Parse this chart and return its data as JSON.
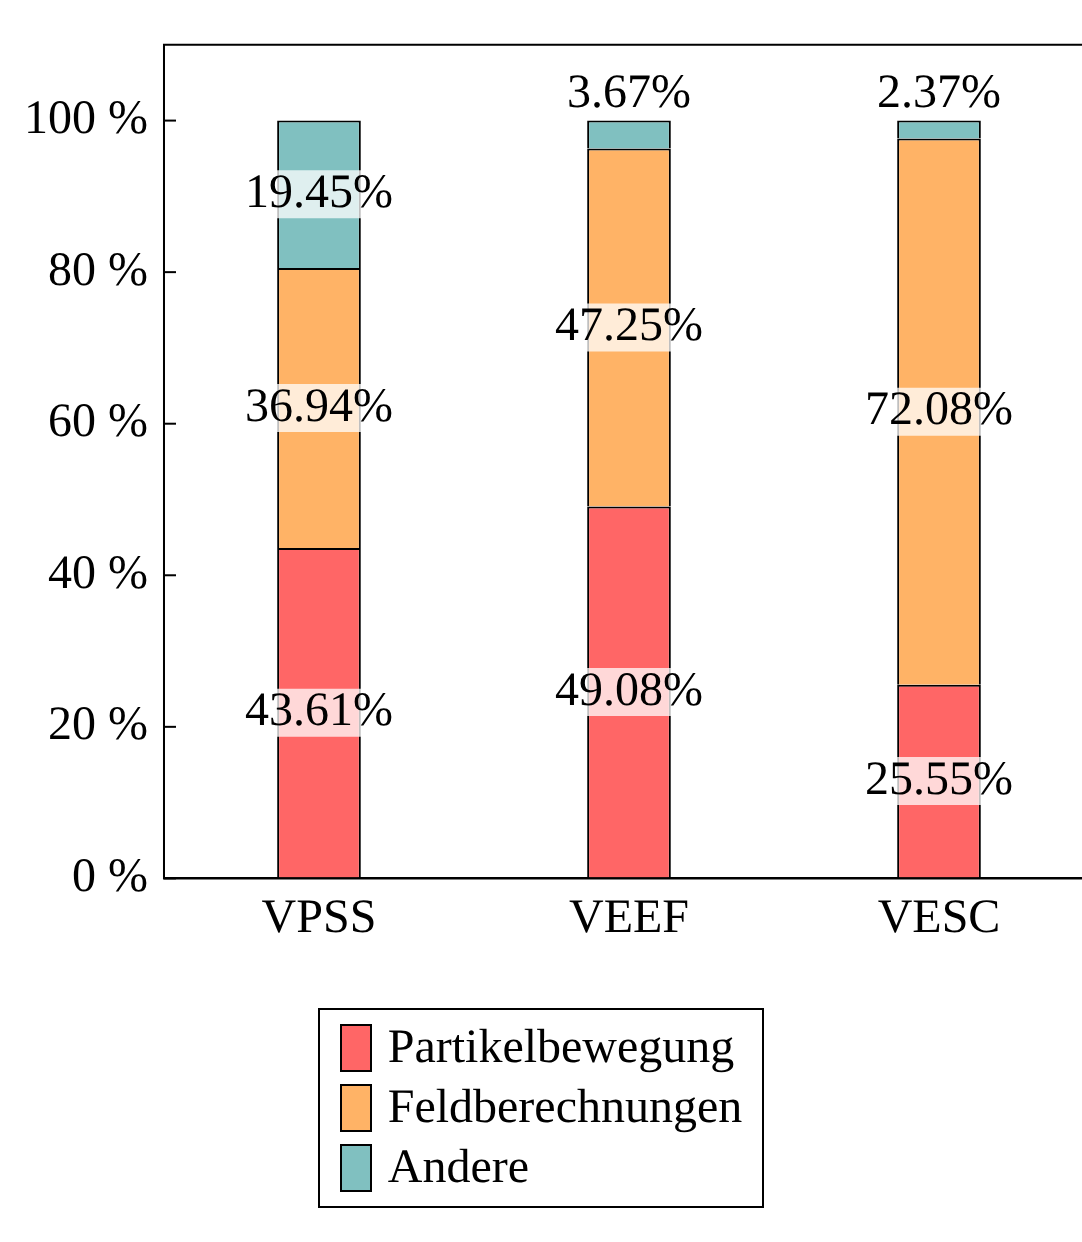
{
  "chart_data": {
    "type": "bar",
    "stacked": true,
    "categories": [
      "VPSS",
      "VEEF",
      "VESC"
    ],
    "series": [
      {
        "name": "Partikelbewegung",
        "color": "#ff6666",
        "values": [
          43.61,
          49.08,
          25.55
        ],
        "value_labels": [
          "43.61%",
          "49.08%",
          "25.55%"
        ]
      },
      {
        "name": "Feldberechnungen",
        "color": "#ffb366",
        "values": [
          36.94,
          47.25,
          72.08
        ],
        "value_labels": [
          "36.94%",
          "47.25%",
          "72.08%"
        ]
      },
      {
        "name": "Andere",
        "color": "#80c0c0",
        "values": [
          19.45,
          3.67,
          2.37
        ],
        "value_labels": [
          "19.45%",
          "3.67%",
          "2.37%"
        ]
      }
    ],
    "ylim": [
      0,
      110
    ],
    "yticks": [
      {
        "value": 0,
        "label": "0 %"
      },
      {
        "value": 20,
        "label": "20 %"
      },
      {
        "value": 40,
        "label": "40 %"
      },
      {
        "value": 60,
        "label": "60 %"
      },
      {
        "value": 80,
        "label": "80 %"
      },
      {
        "value": 100,
        "label": "100 %"
      }
    ],
    "grid": false,
    "legend": "bottom"
  }
}
